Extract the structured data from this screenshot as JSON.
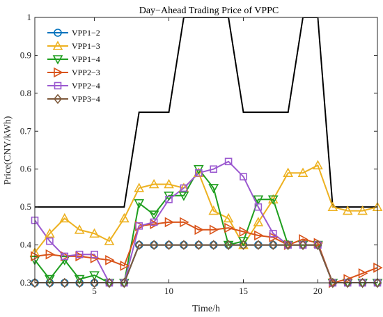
{
  "chart_data": {
    "type": "line",
    "title": "Day−Ahead Trading Price of VPPC",
    "xlabel": "Time/h",
    "ylabel": "Price(CNY/kWh)",
    "xlim": [
      1,
      24
    ],
    "ylim": [
      0.3,
      1.0
    ],
    "xticks": [
      5,
      10,
      15,
      20
    ],
    "yticks": [
      0.3,
      0.4,
      0.5,
      0.6,
      0.7,
      0.8,
      0.9,
      1.0
    ],
    "ytick_labels": [
      "0.3",
      "0.4",
      "0.5",
      "0.6",
      "0.7",
      "0.8",
      "0.9",
      "1"
    ],
    "grid": false,
    "legend_position": "top-left",
    "x": [
      1,
      2,
      3,
      4,
      5,
      6,
      7,
      8,
      9,
      10,
      11,
      12,
      13,
      14,
      15,
      16,
      17,
      18,
      19,
      20,
      21,
      22,
      23,
      24
    ],
    "series": [
      {
        "name": "VPP1−2",
        "color": "#0072BD",
        "marker": "circle",
        "values": [
          0.3,
          0.3,
          0.3,
          0.3,
          0.3,
          0.3,
          0.3,
          0.4,
          0.4,
          0.4,
          0.4,
          0.4,
          0.4,
          0.4,
          0.4,
          0.4,
          0.4,
          0.4,
          0.4,
          0.4,
          0.3,
          0.3,
          0.3,
          0.3
        ]
      },
      {
        "name": "VPP1−3",
        "color": "#EDB120",
        "marker": "triangle-up",
        "values": [
          0.38,
          0.43,
          0.47,
          0.44,
          0.43,
          0.41,
          0.47,
          0.55,
          0.56,
          0.56,
          0.55,
          0.59,
          0.49,
          0.47,
          0.4,
          0.46,
          0.52,
          0.59,
          0.59,
          0.61,
          0.5,
          0.49,
          0.49,
          0.5
        ]
      },
      {
        "name": "VPP1−4",
        "color": "#1E9E1E",
        "marker": "triangle-down",
        "values": [
          0.36,
          0.31,
          0.36,
          0.31,
          0.32,
          0.3,
          0.3,
          0.51,
          0.48,
          0.53,
          0.53,
          0.6,
          0.55,
          0.4,
          0.41,
          0.52,
          0.52,
          0.4,
          0.4,
          0.4,
          0.3,
          0.3,
          0.3,
          0.3
        ]
      },
      {
        "name": "VPP2−3",
        "color": "#D95319",
        "marker": "triangle-right",
        "values": [
          0.37,
          0.375,
          0.37,
          0.37,
          0.365,
          0.36,
          0.345,
          0.45,
          0.455,
          0.46,
          0.46,
          0.44,
          0.44,
          0.445,
          0.435,
          0.425,
          0.42,
          0.4,
          0.415,
          0.405,
          0.3,
          0.31,
          0.325,
          0.34
        ]
      },
      {
        "name": "VPP2−4",
        "color": "#9B59D0",
        "marker": "square",
        "values": [
          0.465,
          0.41,
          0.37,
          0.375,
          0.375,
          0.3,
          0.3,
          0.45,
          0.46,
          0.52,
          0.55,
          0.59,
          0.6,
          0.62,
          0.58,
          0.5,
          0.43,
          0.4,
          0.4,
          0.4,
          0.3,
          0.3,
          0.3,
          0.3
        ]
      },
      {
        "name": "VPP3−4",
        "color": "#7E5A3C",
        "marker": "diamond",
        "values": [
          0.3,
          0.3,
          0.3,
          0.3,
          0.3,
          0.3,
          0.3,
          0.4,
          0.4,
          0.4,
          0.4,
          0.4,
          0.4,
          0.4,
          0.4,
          0.4,
          0.4,
          0.4,
          0.4,
          0.4,
          0.3,
          0.3,
          0.3,
          0.3
        ]
      }
    ],
    "bounds": [
      {
        "color": "#000000",
        "kind": "upper",
        "values": [
          0.5,
          0.5,
          0.5,
          0.5,
          0.5,
          0.5,
          0.5,
          0.75,
          0.75,
          0.75,
          1.0,
          1.0,
          1.0,
          1.0,
          0.75,
          0.75,
          0.75,
          0.75,
          1.0,
          1.0,
          0.5,
          0.5,
          0.5,
          0.5
        ]
      },
      {
        "color": "#000000",
        "kind": "lower",
        "values": [
          0.3,
          0.3,
          0.3,
          0.3,
          0.3,
          0.3,
          0.3,
          0.4,
          0.4,
          0.4,
          0.4,
          0.4,
          0.4,
          0.4,
          0.4,
          0.4,
          0.4,
          0.4,
          0.4,
          0.4,
          0.3,
          0.3,
          0.3,
          0.3
        ]
      }
    ]
  }
}
